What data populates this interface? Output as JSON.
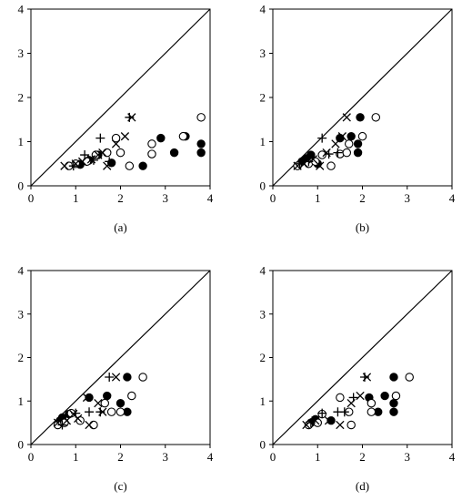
{
  "marker_color": "#000000",
  "chart_data": [
    {
      "type": "scatter",
      "title": "",
      "panel_label": "(a)",
      "xlim": [
        0,
        4
      ],
      "ylim": [
        0,
        4
      ],
      "xticks": [
        "0",
        "1",
        "2",
        "3",
        "4"
      ],
      "yticks": [
        "0",
        "1",
        "2",
        "3",
        "4"
      ],
      "reference_line": {
        "from": [
          0,
          0
        ],
        "to": [
          4,
          4
        ]
      },
      "series": [
        {
          "marker": "filled-circle",
          "points": [
            [
              1.1,
              0.48
            ],
            [
              1.3,
              0.58
            ],
            [
              1.5,
              0.7
            ],
            [
              1.8,
              0.52
            ],
            [
              2.5,
              0.45
            ],
            [
              2.9,
              1.08
            ],
            [
              3.2,
              0.75
            ],
            [
              3.45,
              1.12
            ],
            [
              3.8,
              0.95
            ],
            [
              3.8,
              0.75
            ]
          ]
        },
        {
          "marker": "open-circle",
          "points": [
            [
              0.85,
              0.45
            ],
            [
              1.0,
              0.5
            ],
            [
              1.25,
              0.55
            ],
            [
              1.45,
              0.7
            ],
            [
              1.7,
              0.75
            ],
            [
              1.9,
              1.08
            ],
            [
              2.0,
              0.75
            ],
            [
              2.2,
              0.45
            ],
            [
              2.7,
              0.95
            ],
            [
              2.7,
              0.72
            ],
            [
              3.4,
              1.12
            ],
            [
              3.8,
              1.55
            ]
          ]
        },
        {
          "marker": "x",
          "points": [
            [
              0.75,
              0.45
            ],
            [
              1.0,
              0.5
            ],
            [
              1.15,
              0.55
            ],
            [
              1.35,
              0.6
            ],
            [
              1.5,
              0.7
            ],
            [
              1.6,
              0.75
            ],
            [
              1.7,
              0.45
            ],
            [
              1.9,
              0.95
            ],
            [
              2.1,
              1.12
            ],
            [
              2.25,
              1.55
            ]
          ]
        },
        {
          "marker": "plus",
          "points": [
            [
              0.95,
              0.45
            ],
            [
              1.2,
              0.7
            ],
            [
              1.4,
              0.58
            ],
            [
              1.55,
              1.08
            ],
            [
              1.75,
              0.55
            ],
            [
              2.2,
              1.55
            ]
          ]
        }
      ]
    },
    {
      "type": "scatter",
      "title": "",
      "panel_label": "(b)",
      "xlim": [
        0,
        4
      ],
      "ylim": [
        0,
        4
      ],
      "xticks": [
        "0",
        "1",
        "2",
        "3",
        "4"
      ],
      "yticks": [
        "0",
        "1",
        "2",
        "3",
        "4"
      ],
      "reference_line": {
        "from": [
          0,
          0
        ],
        "to": [
          4,
          4
        ]
      },
      "series": [
        {
          "marker": "filled-circle",
          "points": [
            [
              0.65,
              0.55
            ],
            [
              0.75,
              0.62
            ],
            [
              0.85,
              0.7
            ],
            [
              1.0,
              0.5
            ],
            [
              1.5,
              1.08
            ],
            [
              1.75,
              1.12
            ],
            [
              1.9,
              0.95
            ],
            [
              1.9,
              0.75
            ],
            [
              1.95,
              1.55
            ]
          ]
        },
        {
          "marker": "open-circle",
          "points": [
            [
              0.55,
              0.45
            ],
            [
              0.8,
              0.5
            ],
            [
              0.95,
              0.55
            ],
            [
              1.1,
              0.7
            ],
            [
              1.3,
              0.45
            ],
            [
              1.5,
              0.72
            ],
            [
              1.65,
              0.75
            ],
            [
              1.7,
              0.95
            ],
            [
              2.0,
              1.12
            ],
            [
              2.3,
              1.55
            ]
          ]
        },
        {
          "marker": "x",
          "points": [
            [
              0.55,
              0.45
            ],
            [
              0.7,
              0.5
            ],
            [
              0.9,
              0.6
            ],
            [
              1.05,
              0.45
            ],
            [
              1.2,
              0.75
            ],
            [
              1.4,
              0.95
            ],
            [
              1.55,
              1.12
            ],
            [
              1.65,
              1.55
            ]
          ]
        },
        {
          "marker": "plus",
          "points": [
            [
              0.6,
              0.5
            ],
            [
              0.8,
              0.55
            ],
            [
              1.1,
              1.08
            ],
            [
              1.25,
              0.72
            ],
            [
              1.45,
              0.75
            ]
          ]
        }
      ]
    },
    {
      "type": "scatter",
      "title": "",
      "panel_label": "(c)",
      "xlim": [
        0,
        4
      ],
      "ylim": [
        0,
        4
      ],
      "xticks": [
        "0",
        "1",
        "2",
        "3",
        "4"
      ],
      "yticks": [
        "0",
        "1",
        "2",
        "3",
        "4"
      ],
      "reference_line": {
        "from": [
          0,
          0
        ],
        "to": [
          4,
          4
        ]
      },
      "series": [
        {
          "marker": "filled-circle",
          "points": [
            [
              0.65,
              0.55
            ],
            [
              0.7,
              0.62
            ],
            [
              0.85,
              0.7
            ],
            [
              1.3,
              1.08
            ],
            [
              1.7,
              1.12
            ],
            [
              2.0,
              0.95
            ],
            [
              2.15,
              0.75
            ],
            [
              2.15,
              1.55
            ]
          ]
        },
        {
          "marker": "open-circle",
          "points": [
            [
              0.6,
              0.45
            ],
            [
              0.75,
              0.5
            ],
            [
              0.9,
              0.72
            ],
            [
              1.1,
              0.55
            ],
            [
              1.4,
              0.45
            ],
            [
              1.65,
              0.95
            ],
            [
              1.8,
              0.75
            ],
            [
              2.0,
              0.75
            ],
            [
              2.25,
              1.12
            ],
            [
              2.5,
              1.55
            ]
          ]
        },
        {
          "marker": "x",
          "points": [
            [
              0.6,
              0.5
            ],
            [
              0.8,
              0.55
            ],
            [
              0.95,
              0.7
            ],
            [
              1.05,
              0.6
            ],
            [
              1.25,
              1.08
            ],
            [
              1.3,
              0.45
            ],
            [
              1.5,
              0.95
            ],
            [
              1.6,
              0.75
            ],
            [
              1.9,
              1.55
            ]
          ]
        },
        {
          "marker": "plus",
          "points": [
            [
              0.7,
              0.45
            ],
            [
              1.0,
              0.72
            ],
            [
              1.3,
              0.75
            ],
            [
              1.55,
              0.75
            ],
            [
              1.75,
              1.55
            ]
          ]
        }
      ]
    },
    {
      "type": "scatter",
      "title": "",
      "panel_label": "(d)",
      "xlim": [
        0,
        4
      ],
      "ylim": [
        0,
        4
      ],
      "xticks": [
        "0",
        "1",
        "2",
        "3",
        "4"
      ],
      "yticks": [
        "0",
        "1",
        "2",
        "3",
        "4"
      ],
      "reference_line": {
        "from": [
          0,
          0
        ],
        "to": [
          4,
          4
        ]
      },
      "series": [
        {
          "marker": "filled-circle",
          "points": [
            [
              0.85,
              0.5
            ],
            [
              0.95,
              0.58
            ],
            [
              1.3,
              0.55
            ],
            [
              2.15,
              1.08
            ],
            [
              2.35,
              0.75
            ],
            [
              2.5,
              1.12
            ],
            [
              2.7,
              0.95
            ],
            [
              2.7,
              0.75
            ],
            [
              2.7,
              1.55
            ]
          ]
        },
        {
          "marker": "open-circle",
          "points": [
            [
              0.8,
              0.45
            ],
            [
              1.0,
              0.5
            ],
            [
              1.1,
              0.7
            ],
            [
              1.5,
              1.08
            ],
            [
              1.7,
              0.75
            ],
            [
              1.75,
              0.45
            ],
            [
              2.2,
              0.95
            ],
            [
              2.2,
              0.75
            ],
            [
              2.75,
              1.12
            ],
            [
              3.05,
              1.55
            ]
          ]
        },
        {
          "marker": "x",
          "points": [
            [
              0.75,
              0.45
            ],
            [
              0.95,
              0.55
            ],
            [
              1.25,
              0.55
            ],
            [
              1.5,
              0.45
            ],
            [
              1.75,
              0.95
            ],
            [
              1.95,
              1.12
            ],
            [
              2.1,
              1.55
            ]
          ]
        },
        {
          "marker": "plus",
          "points": [
            [
              0.85,
              0.5
            ],
            [
              1.1,
              0.72
            ],
            [
              1.45,
              0.75
            ],
            [
              1.6,
              0.75
            ],
            [
              1.8,
              1.08
            ],
            [
              2.05,
              1.55
            ]
          ]
        }
      ]
    }
  ]
}
